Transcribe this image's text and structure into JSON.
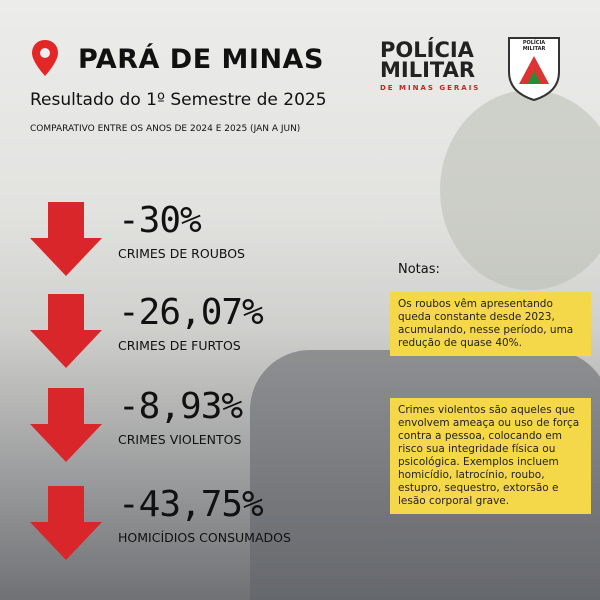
{
  "header": {
    "title": "PARÁ DE MINAS",
    "subtitle": "Resultado do 1º Semestre de 2025",
    "caption": "COMPARATIVO ENTRE OS ANOS DE 2024 E 2025 (JAN A JUN)"
  },
  "logo": {
    "line1": "POLÍCIA",
    "line2": "MILITAR",
    "line3": "DE MINAS GERAIS",
    "badge": "POLÍCIA MILITAR"
  },
  "items": [
    {
      "value": "-30%",
      "label": "CRIMES DE ROUBOS"
    },
    {
      "value": "-26,07%",
      "label": "CRIMES DE FURTOS"
    },
    {
      "value": "-8,93%",
      "label": "CRIMES VIOLENTOS"
    },
    {
      "value": "-43,75%",
      "label": "HOMICÍDIOS CONSUMADOS"
    }
  ],
  "notes": {
    "title": "Notas:",
    "items": [
      "Os roubos vêm apresentando queda constante desde 2023, acumulando, nesse período, uma redução de quase 40%.",
      "Crimes violentos são aqueles que envolvem ameaça ou uso de força contra a pessoa, colocando em risco sua integridade física ou psicológica. Exemplos incluem homicídio, latrocínio, roubo, estupro, sequestro, extorsão e lesão corporal grave."
    ]
  }
}
